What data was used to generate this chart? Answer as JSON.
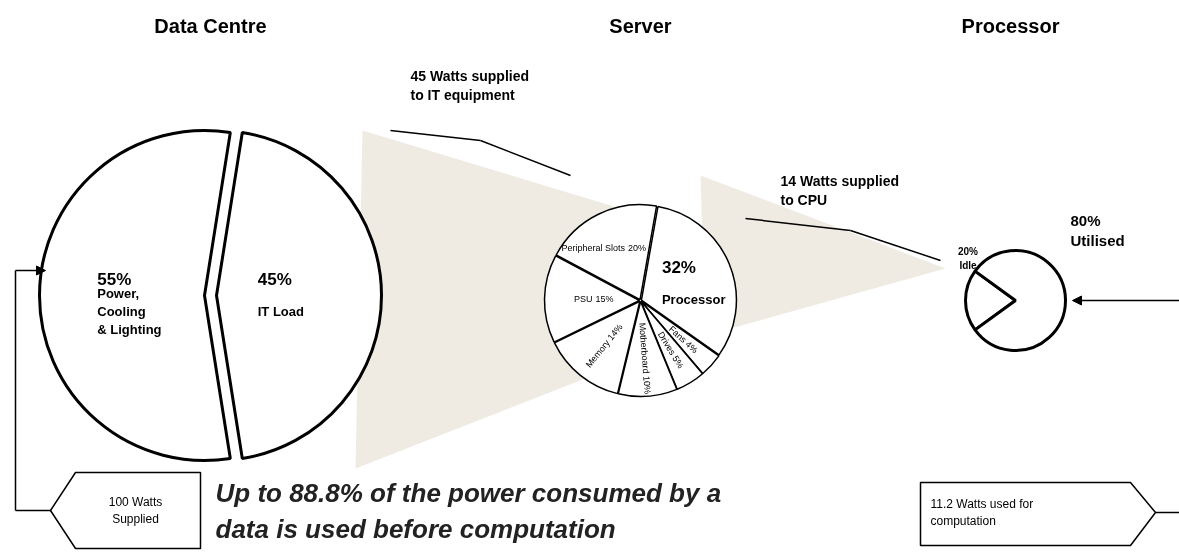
{
  "chart_data": [
    {
      "type": "pie",
      "title": "Data Centre",
      "categories": [
        "Power, Cooling & Lighting",
        "IT Load"
      ],
      "values": [
        55,
        45
      ],
      "colors": [
        "#ffffff",
        "#ffffff"
      ],
      "value_labels": [
        "55%",
        "45%"
      ],
      "annotations": [
        "100 Watts\nSupplied",
        "Up to 88.8% of the power consumed by a\ndata is used before computation"
      ]
    },
    {
      "type": "pie",
      "title": "Server",
      "categories": [
        "Processor",
        "Fans",
        "Drives",
        "Motherboard",
        "Memory",
        "PSU",
        "Peripheral Slots"
      ],
      "values": [
        32,
        4,
        5,
        10,
        14,
        15,
        20
      ],
      "colors": [
        "#ffffff",
        "#ffffff",
        "#ffffff",
        "#ffffff",
        "#ffffff",
        "#ffffff",
        "#ffffff"
      ],
      "value_labels": [
        "32%",
        "4%",
        "5%",
        "10%",
        "14%",
        "15%",
        "20%"
      ],
      "annotations": [
        "45 Watts supplied\nto IT equipment"
      ]
    },
    {
      "type": "pie",
      "title": "Processor",
      "categories": [
        "Idle",
        "Utilised"
      ],
      "values": [
        20,
        80
      ],
      "colors": [
        "#ffffff",
        "#ffffff"
      ],
      "value_labels": [
        "20%",
        "80%"
      ],
      "annotations": [
        "14 Watts supplied\nto CPU",
        "11.2 Watts used for\ncomputation"
      ]
    }
  ]
}
